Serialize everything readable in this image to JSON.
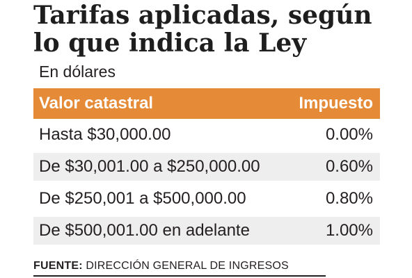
{
  "title": "Tarifas aplicadas, según lo que indica la Ley",
  "subtitle": "En dólares",
  "chart_data": {
    "type": "table",
    "columns": [
      "Valor catastral",
      "Impuesto"
    ],
    "rows": [
      [
        "Hasta $30,000.00",
        "0.00%"
      ],
      [
        "De $30,001.00 a $250,000.00",
        "0.60%"
      ],
      [
        "De $250,001 a $500,000.00",
        "0.80%"
      ],
      [
        "De $500,001.00 en adelante",
        "1.00%"
      ]
    ],
    "impuesto_percent": [
      0.0,
      0.6,
      0.8,
      1.0
    ]
  },
  "source": {
    "label": "FUENTE:",
    "text": "DIRECCIÓN GENERAL DE INGRESOS"
  },
  "colors": {
    "header_bg": "#e58a37",
    "shaded_row": "#eeeeee",
    "text": "#231f20"
  }
}
